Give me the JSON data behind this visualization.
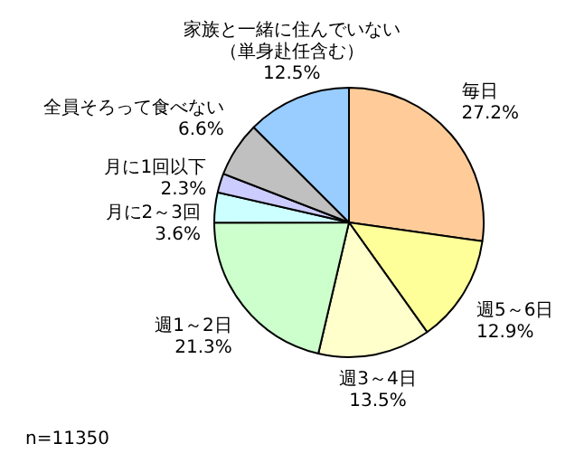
{
  "chart_data": {
    "type": "pie",
    "categories": [
      "毎日",
      "週5～6日",
      "週3～4日",
      "週1～2日",
      "月に2～3回",
      "月に1回以下",
      "全員そろって食べない",
      "家族と一緒に住んでいない（単身赴任含む）"
    ],
    "values": [
      27.2,
      12.9,
      13.5,
      21.3,
      3.6,
      2.3,
      6.6,
      12.5
    ],
    "value_labels": [
      "27.2%",
      "12.9%",
      "13.5%",
      "21.3%",
      "3.6%",
      "2.3%",
      "6.6%",
      "12.5%"
    ],
    "colors": [
      "#ffcc99",
      "#ffff99",
      "#ffffcc",
      "#ccffcc",
      "#ccffff",
      "#ccccff",
      "#c0c0c0",
      "#99ccff"
    ],
    "legend": false,
    "annotations": [
      "n=11350"
    ]
  }
}
